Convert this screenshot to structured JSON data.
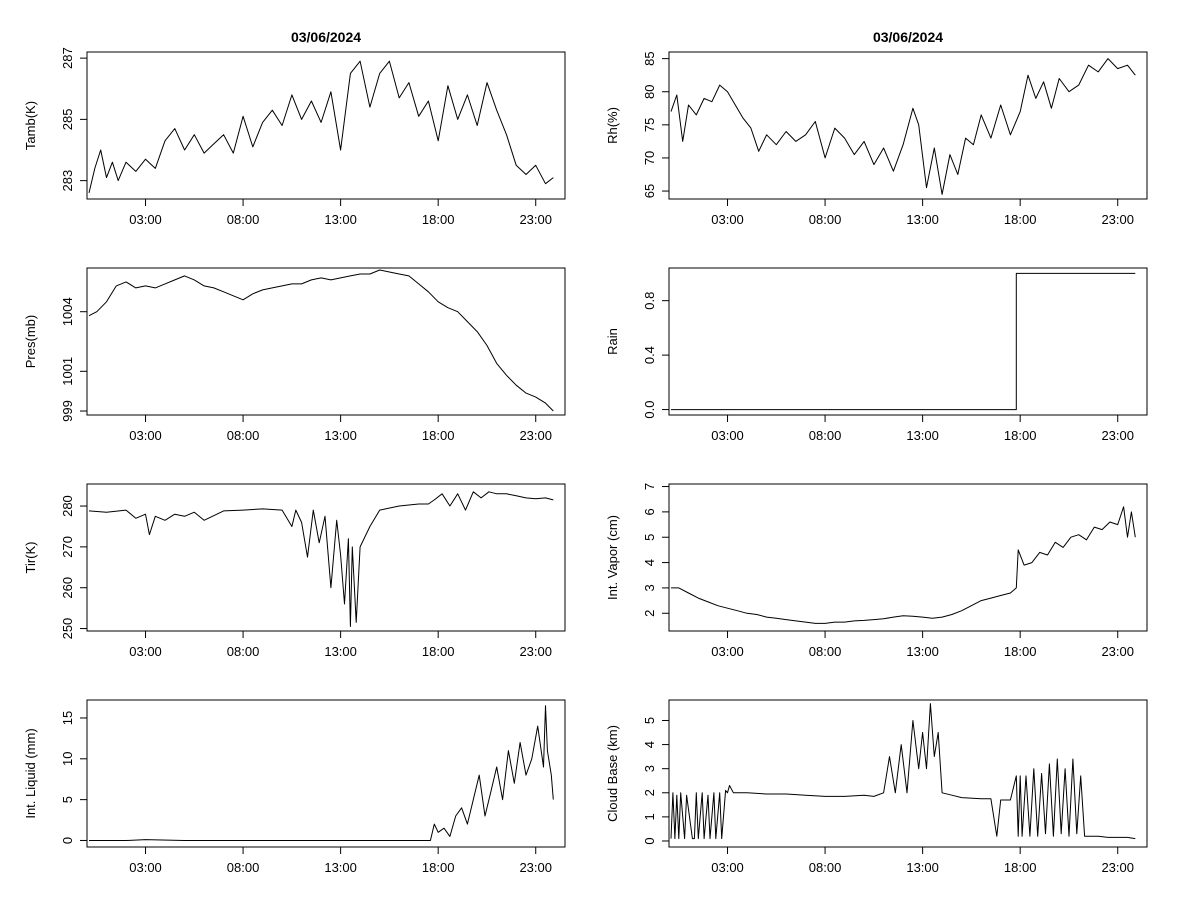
{
  "page": {
    "titles": [
      "03/06/2024",
      "03/06/2024"
    ]
  },
  "chart_data": [
    {
      "id": "tamb",
      "type": "line",
      "title": "03/06/2024",
      "xlabel": "",
      "ylabel": "Tamb(K)",
      "xlim": [
        0,
        24.5
      ],
      "ylim": [
        282.4,
        287.2
      ],
      "xticks": [
        3,
        8,
        13,
        18,
        23
      ],
      "xtick_labels": [
        "03:00",
        "08:00",
        "13:00",
        "18:00",
        "23:00"
      ],
      "yticks": [
        283,
        285,
        287
      ],
      "step": false,
      "x": [
        0.1,
        0.4,
        0.7,
        1.0,
        1.3,
        1.6,
        2.0,
        2.5,
        3.0,
        3.5,
        4.0,
        4.5,
        5.0,
        5.5,
        6.0,
        6.5,
        7.0,
        7.5,
        8.0,
        8.5,
        9.0,
        9.5,
        10.0,
        10.5,
        11.0,
        11.5,
        12.0,
        12.5,
        13.0,
        13.5,
        14.0,
        14.5,
        15.0,
        15.5,
        16.0,
        16.5,
        17.0,
        17.5,
        18.0,
        18.5,
        19.0,
        19.5,
        20.0,
        20.5,
        21.0,
        21.5,
        22.0,
        22.5,
        23.0,
        23.5,
        23.9
      ],
      "y": [
        282.6,
        283.4,
        284.0,
        283.1,
        283.6,
        283.0,
        283.6,
        283.3,
        283.7,
        283.4,
        284.3,
        284.7,
        284.0,
        284.5,
        283.9,
        284.2,
        284.5,
        283.9,
        285.1,
        284.1,
        284.9,
        285.3,
        284.8,
        285.8,
        285.0,
        285.6,
        284.9,
        285.9,
        284.0,
        286.5,
        286.9,
        285.4,
        286.5,
        286.9,
        285.7,
        286.2,
        285.1,
        285.6,
        284.3,
        286.1,
        285.0,
        285.8,
        284.8,
        286.2,
        285.3,
        284.5,
        283.5,
        283.2,
        283.5,
        282.9,
        283.1
      ]
    },
    {
      "id": "rh",
      "type": "line",
      "title": "03/06/2024",
      "xlabel": "",
      "ylabel": "Rh(%)",
      "xlim": [
        0,
        24.5
      ],
      "ylim": [
        63.8,
        86
      ],
      "xticks": [
        3,
        8,
        13,
        18,
        23
      ],
      "xtick_labels": [
        "03:00",
        "08:00",
        "13:00",
        "18:00",
        "23:00"
      ],
      "yticks": [
        65,
        70,
        75,
        80,
        85
      ],
      "step": false,
      "x": [
        0.1,
        0.4,
        0.7,
        1.0,
        1.4,
        1.8,
        2.2,
        2.6,
        3.0,
        3.4,
        3.8,
        4.2,
        4.6,
        5.0,
        5.5,
        6.0,
        6.5,
        7.0,
        7.5,
        8.0,
        8.5,
        9.0,
        9.5,
        10.0,
        10.5,
        11.0,
        11.5,
        12.0,
        12.5,
        12.8,
        13.2,
        13.6,
        14.0,
        14.4,
        14.8,
        15.2,
        15.6,
        16.0,
        16.5,
        17.0,
        17.5,
        18.0,
        18.4,
        18.8,
        19.2,
        19.6,
        20.0,
        20.5,
        21.0,
        21.5,
        22.0,
        22.5,
        23.0,
        23.5,
        23.9
      ],
      "y": [
        77.0,
        79.5,
        72.5,
        78.0,
        76.5,
        79.0,
        78.5,
        81.0,
        80.0,
        78.0,
        76.0,
        74.5,
        71.0,
        73.5,
        72.0,
        74.0,
        72.5,
        73.5,
        75.5,
        70.0,
        74.5,
        73.0,
        70.5,
        72.5,
        69.0,
        71.5,
        68.0,
        72.0,
        77.5,
        75.0,
        65.5,
        71.5,
        64.5,
        70.5,
        67.5,
        73.0,
        72.0,
        76.5,
        73.0,
        78.0,
        73.5,
        77.0,
        82.5,
        79.0,
        81.5,
        77.5,
        82.0,
        80.0,
        81.0,
        84.0,
        83.0,
        85.0,
        83.5,
        84.0,
        82.5
      ]
    },
    {
      "id": "pres",
      "type": "line",
      "title": "",
      "xlabel": "",
      "ylabel": "Pres(mb)",
      "xlim": [
        0,
        24.5
      ],
      "ylim": [
        998.8,
        1006.2
      ],
      "xticks": [
        3,
        8,
        13,
        18,
        23
      ],
      "xtick_labels": [
        "03:00",
        "08:00",
        "13:00",
        "18:00",
        "23:00"
      ],
      "yticks": [
        999,
        1001,
        1004
      ],
      "step": false,
      "x": [
        0.1,
        0.5,
        1.0,
        1.5,
        2.0,
        2.5,
        3.0,
        3.5,
        4.0,
        4.5,
        5.0,
        5.5,
        6.0,
        6.5,
        7.0,
        7.5,
        8.0,
        8.5,
        9.0,
        9.5,
        10.0,
        10.5,
        11.0,
        11.5,
        12.0,
        12.5,
        13.0,
        13.5,
        14.0,
        14.5,
        15.0,
        15.5,
        16.0,
        16.5,
        17.0,
        17.5,
        18.0,
        18.5,
        19.0,
        19.5,
        20.0,
        20.5,
        21.0,
        21.5,
        22.0,
        22.5,
        23.0,
        23.5,
        23.9
      ],
      "y": [
        1003.8,
        1004.0,
        1004.5,
        1005.3,
        1005.5,
        1005.2,
        1005.3,
        1005.2,
        1005.4,
        1005.6,
        1005.8,
        1005.6,
        1005.3,
        1005.2,
        1005.0,
        1004.8,
        1004.6,
        1004.9,
        1005.1,
        1005.2,
        1005.3,
        1005.4,
        1005.4,
        1005.6,
        1005.7,
        1005.6,
        1005.7,
        1005.8,
        1005.9,
        1005.9,
        1006.1,
        1006.0,
        1005.9,
        1005.8,
        1005.4,
        1005.0,
        1004.5,
        1004.2,
        1004.0,
        1003.5,
        1003.0,
        1002.3,
        1001.4,
        1000.8,
        1000.3,
        999.9,
        999.7,
        999.4,
        999.0
      ]
    },
    {
      "id": "rain",
      "type": "line",
      "title": "",
      "xlabel": "",
      "ylabel": "Rain",
      "xlim": [
        0,
        24.5
      ],
      "ylim": [
        -0.04,
        1.04
      ],
      "xticks": [
        3,
        8,
        13,
        18,
        23
      ],
      "xtick_labels": [
        "03:00",
        "08:00",
        "13:00",
        "18:00",
        "23:00"
      ],
      "yticks": [
        0.0,
        0.4,
        0.8
      ],
      "ytick_labels": [
        "0.0",
        "0.4",
        "0.8"
      ],
      "step": true,
      "x": [
        0.1,
        17.8,
        17.8,
        23.9
      ],
      "y": [
        0,
        0,
        1,
        1
      ]
    },
    {
      "id": "tir",
      "type": "line",
      "title": "",
      "xlabel": "",
      "ylabel": "Tir(K)",
      "xlim": [
        0,
        24.5
      ],
      "ylim": [
        249.4,
        285.4
      ],
      "xticks": [
        3,
        8,
        13,
        18,
        23
      ],
      "xtick_labels": [
        "03:00",
        "08:00",
        "13:00",
        "18:00",
        "23:00"
      ],
      "yticks": [
        250,
        260,
        270,
        280
      ],
      "step": false,
      "x": [
        0.1,
        1.0,
        2.0,
        2.5,
        3.0,
        3.2,
        3.5,
        4.0,
        4.5,
        5.0,
        5.5,
        6.0,
        7.0,
        8.0,
        9.0,
        10.0,
        10.5,
        10.7,
        11.0,
        11.3,
        11.6,
        11.9,
        12.2,
        12.5,
        12.8,
        13.0,
        13.2,
        13.4,
        13.5,
        13.6,
        13.8,
        14.0,
        14.5,
        15.0,
        16.0,
        17.0,
        17.5,
        17.8,
        18.2,
        18.6,
        19.0,
        19.4,
        19.8,
        20.2,
        20.6,
        21.0,
        21.5,
        22.0,
        22.5,
        23.0,
        23.5,
        23.9
      ],
      "y": [
        278.8,
        278.5,
        279.0,
        277.0,
        278.0,
        273.0,
        277.5,
        276.5,
        278.0,
        277.5,
        278.5,
        276.5,
        278.8,
        279.0,
        279.3,
        279.0,
        275.0,
        279.0,
        276.0,
        267.5,
        279.0,
        271.0,
        277.5,
        260.0,
        276.5,
        268.0,
        256.0,
        272.0,
        250.5,
        270.0,
        251.5,
        270.0,
        275.0,
        279.0,
        280.0,
        280.5,
        280.5,
        281.5,
        283.0,
        280.0,
        283.0,
        279.0,
        283.5,
        282.0,
        283.5,
        283.0,
        283.0,
        282.5,
        282.0,
        281.8,
        282.0,
        281.5
      ]
    },
    {
      "id": "vapor",
      "type": "line",
      "title": "",
      "xlabel": "",
      "ylabel": "Int. Vapor (cm)",
      "xlim": [
        0,
        24.5
      ],
      "ylim": [
        1.3,
        7.1
      ],
      "xticks": [
        3,
        8,
        13,
        18,
        23
      ],
      "xtick_labels": [
        "03:00",
        "08:00",
        "13:00",
        "18:00",
        "23:00"
      ],
      "yticks": [
        2,
        3,
        4,
        5,
        6,
        7
      ],
      "step": false,
      "x": [
        0.1,
        0.5,
        1.0,
        1.5,
        2.0,
        2.5,
        3.0,
        3.5,
        4.0,
        4.5,
        5.0,
        5.5,
        6.0,
        6.5,
        7.0,
        7.5,
        8.0,
        8.5,
        9.0,
        9.5,
        10.0,
        10.5,
        11.0,
        11.5,
        12.0,
        12.5,
        13.0,
        13.5,
        14.0,
        14.5,
        15.0,
        15.5,
        16.0,
        16.5,
        17.0,
        17.5,
        17.8,
        17.9,
        18.2,
        18.6,
        19.0,
        19.4,
        19.8,
        20.2,
        20.6,
        21.0,
        21.4,
        21.8,
        22.2,
        22.6,
        23.0,
        23.3,
        23.5,
        23.7,
        23.9
      ],
      "y": [
        3.0,
        3.0,
        2.8,
        2.6,
        2.45,
        2.3,
        2.2,
        2.1,
        2.0,
        1.95,
        1.85,
        1.8,
        1.75,
        1.7,
        1.65,
        1.6,
        1.6,
        1.65,
        1.65,
        1.7,
        1.72,
        1.75,
        1.78,
        1.85,
        1.9,
        1.88,
        1.85,
        1.8,
        1.85,
        1.95,
        2.1,
        2.3,
        2.5,
        2.6,
        2.7,
        2.8,
        3.0,
        4.5,
        3.9,
        4.0,
        4.4,
        4.3,
        4.8,
        4.6,
        5.0,
        5.1,
        4.9,
        5.4,
        5.3,
        5.6,
        5.5,
        6.2,
        5.0,
        6.0,
        5.0
      ]
    },
    {
      "id": "liquid",
      "type": "line",
      "title": "",
      "xlabel": "",
      "ylabel": "Int. Liquid (mm)",
      "xlim": [
        0,
        24.5
      ],
      "ylim": [
        -0.8,
        17.2
      ],
      "xticks": [
        3,
        8,
        13,
        18,
        23
      ],
      "xtick_labels": [
        "03:00",
        "08:00",
        "13:00",
        "18:00",
        "23:00"
      ],
      "yticks": [
        0,
        5,
        10,
        15
      ],
      "step": false,
      "x": [
        0.1,
        2.0,
        3.0,
        5.0,
        8.0,
        10.0,
        13.0,
        15.0,
        17.0,
        17.6,
        17.8,
        18.0,
        18.3,
        18.6,
        18.9,
        19.2,
        19.5,
        19.8,
        20.1,
        20.4,
        20.7,
        21.0,
        21.3,
        21.6,
        21.9,
        22.2,
        22.5,
        22.8,
        23.1,
        23.4,
        23.5,
        23.6,
        23.8,
        23.9
      ],
      "y": [
        0,
        0,
        0.1,
        0,
        0,
        0,
        0,
        0,
        0,
        0,
        2.0,
        1.0,
        1.5,
        0.5,
        3.0,
        4.0,
        2.0,
        5.0,
        8.0,
        3.0,
        6.0,
        9.0,
        5.0,
        11.0,
        7.0,
        12.0,
        8.0,
        10.0,
        14.0,
        9.0,
        16.5,
        11.0,
        8.0,
        5.0
      ]
    },
    {
      "id": "cloudbase",
      "type": "line",
      "title": "",
      "xlabel": "",
      "ylabel": "Cloud Base (km)",
      "xlim": [
        0,
        24.5
      ],
      "ylim": [
        -0.25,
        5.85
      ],
      "xticks": [
        3,
        8,
        13,
        18,
        23
      ],
      "xtick_labels": [
        "03:00",
        "08:00",
        "13:00",
        "18:00",
        "23:00"
      ],
      "yticks": [
        0,
        1,
        2,
        3,
        4,
        5
      ],
      "step": false,
      "x": [
        0.1,
        0.2,
        0.3,
        0.4,
        0.5,
        0.6,
        0.8,
        0.9,
        1.2,
        1.3,
        1.4,
        1.5,
        1.7,
        1.8,
        2.0,
        2.1,
        2.3,
        2.4,
        2.6,
        2.7,
        2.9,
        3.0,
        3.1,
        3.3,
        3.5,
        4.0,
        5.0,
        6.0,
        7.0,
        8.0,
        9.0,
        10.0,
        10.5,
        11.0,
        11.3,
        11.6,
        11.9,
        12.2,
        12.5,
        12.8,
        13.0,
        13.2,
        13.4,
        13.6,
        13.8,
        14.0,
        14.5,
        15.0,
        16.0,
        16.5,
        16.8,
        17.0,
        17.5,
        17.8,
        17.9,
        18.0,
        18.1,
        18.3,
        18.5,
        18.7,
        18.9,
        19.1,
        19.3,
        19.5,
        19.7,
        19.9,
        20.1,
        20.3,
        20.5,
        20.7,
        20.9,
        21.1,
        21.3,
        21.5,
        22.0,
        22.5,
        23.0,
        23.5,
        23.9
      ],
      "y": [
        0.1,
        2.0,
        0.1,
        1.9,
        0.1,
        2.0,
        0.1,
        1.9,
        0.1,
        0.1,
        2.0,
        0.1,
        2.0,
        0.1,
        1.9,
        0.1,
        2.0,
        0.1,
        2.0,
        0.1,
        2.1,
        2.0,
        2.3,
        2.0,
        2.0,
        2.0,
        1.95,
        1.95,
        1.9,
        1.85,
        1.85,
        1.9,
        1.85,
        2.0,
        3.5,
        2.0,
        4.0,
        2.0,
        5.0,
        3.0,
        4.5,
        3.0,
        5.7,
        3.5,
        4.5,
        2.0,
        1.9,
        1.8,
        1.75,
        1.75,
        0.2,
        1.7,
        1.7,
        2.7,
        0.2,
        2.7,
        0.2,
        2.7,
        0.2,
        3.0,
        0.2,
        2.8,
        0.3,
        3.2,
        0.2,
        3.4,
        0.3,
        3.0,
        0.2,
        3.4,
        0.3,
        2.7,
        0.2,
        0.2,
        0.2,
        0.15,
        0.15,
        0.15,
        0.1
      ]
    }
  ]
}
